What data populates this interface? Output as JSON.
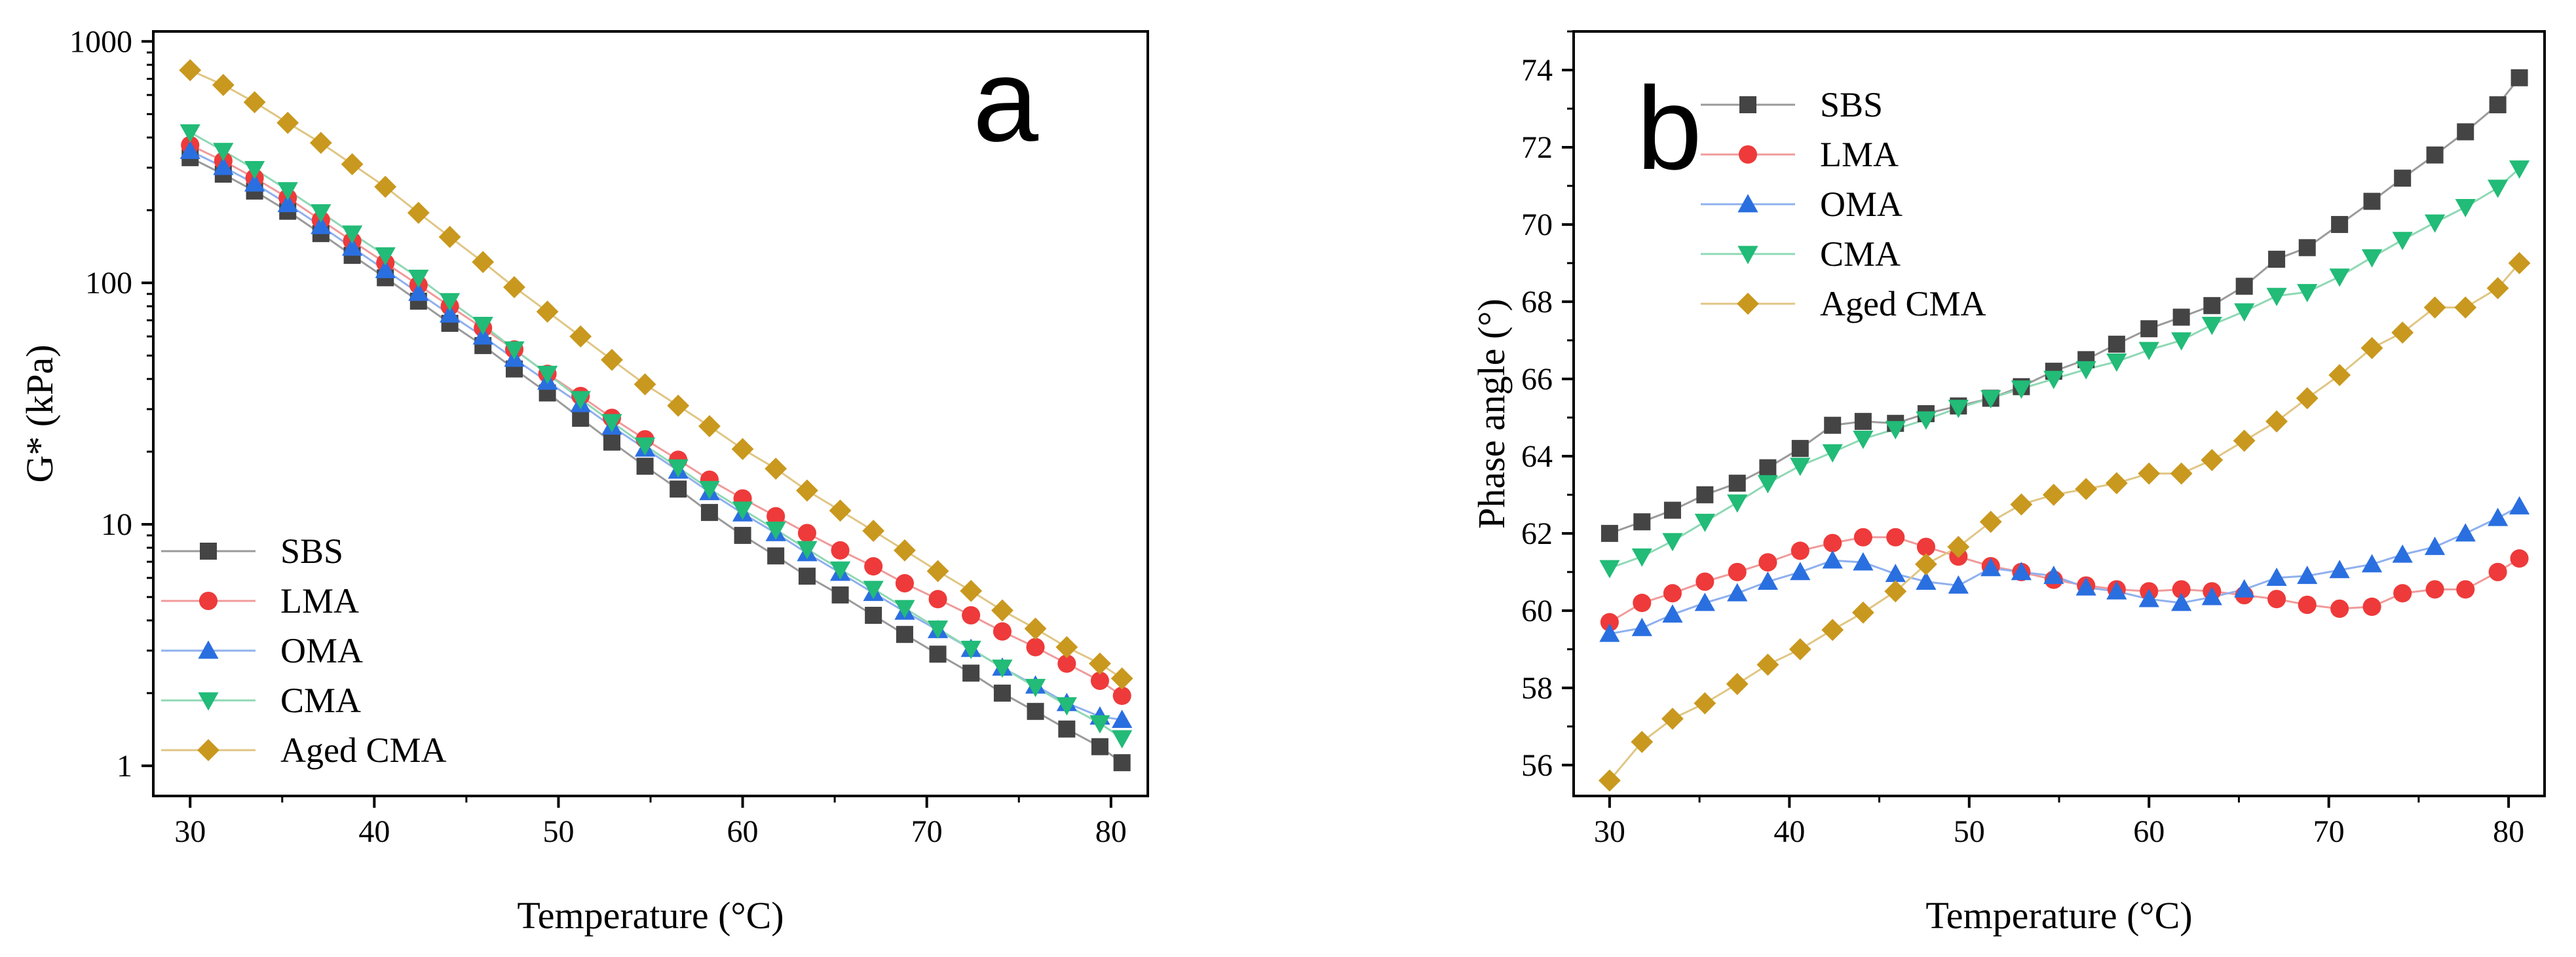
{
  "chart_data": [
    {
      "type": "scatter",
      "panel_label": "a",
      "panel_label_color": "#ee1111",
      "xlabel": "Temperature (°C)",
      "ylabel": "G* (kPa)",
      "yscale": "log",
      "xlim": [
        28,
        82
      ],
      "ylim": [
        0.75,
        1100
      ],
      "xticks": [
        30,
        40,
        50,
        60,
        70,
        80
      ],
      "yticks": [
        1,
        10,
        100,
        1000
      ],
      "legend_position": "bottom-left",
      "x": [
        30,
        31.8,
        33.5,
        35.3,
        37.1,
        38.8,
        40.6,
        42.4,
        44.1,
        45.9,
        47.6,
        49.4,
        51.2,
        52.9,
        54.7,
        56.5,
        58.2,
        60,
        61.8,
        63.5,
        65.3,
        67.1,
        68.8,
        70.6,
        72.4,
        74.1,
        75.9,
        77.6,
        79.4,
        80.6
      ],
      "series": [
        {
          "name": "SBS",
          "marker": "square",
          "color": "#444444",
          "line_color": "#9a9a9a",
          "values": [
            330,
            282,
            240,
            198,
            160,
            130,
            105,
            84,
            68,
            55,
            44,
            35,
            27.5,
            21.9,
            17.4,
            14,
            11.2,
            9.0,
            7.4,
            6.1,
            5.1,
            4.2,
            3.5,
            2.9,
            2.42,
            2.0,
            1.68,
            1.42,
            1.2,
            1.03
          ]
        },
        {
          "name": "LMA",
          "marker": "circle",
          "color": "#ee3a3a",
          "line_color": "#f09a9a",
          "values": [
            372,
            320,
            272,
            225,
            182,
            149,
            121,
            98,
            80,
            65,
            53,
            42,
            34,
            27.6,
            22.5,
            18.5,
            15.3,
            12.8,
            10.8,
            9.2,
            7.8,
            6.7,
            5.7,
            4.9,
            4.2,
            3.6,
            3.1,
            2.65,
            2.25,
            1.95
          ]
        },
        {
          "name": "OMA",
          "marker": "triangle-up",
          "color": "#2a6fe0",
          "line_color": "#8fb0ee",
          "values": [
            352,
            302,
            258,
            212,
            172,
            140,
            113,
            91,
            74,
            60,
            48.5,
            39,
            31.5,
            25.4,
            20.6,
            16.7,
            13.6,
            11.1,
            9.2,
            7.6,
            6.3,
            5.2,
            4.35,
            3.65,
            3.05,
            2.55,
            2.15,
            1.82,
            1.6,
            1.55
          ]
        },
        {
          "name": "CMA",
          "marker": "triangle-down",
          "color": "#22bb77",
          "line_color": "#8fd8b4",
          "values": [
            420,
            352,
            296,
            242,
            196,
            160,
            130,
            105,
            84,
            67,
            53,
            42,
            33,
            26.5,
            21.2,
            17.2,
            14,
            11.5,
            9.5,
            7.9,
            6.5,
            5.4,
            4.5,
            3.7,
            3.05,
            2.55,
            2.12,
            1.78,
            1.5,
            1.3
          ]
        },
        {
          "name": "Aged CMA",
          "marker": "diamond",
          "color": "#c9981e",
          "line_color": "#e0c684",
          "values": [
            760,
            660,
            560,
            460,
            380,
            310,
            250,
            195,
            155,
            122,
            96,
            76,
            60,
            48,
            38,
            31,
            25.5,
            20.5,
            17,
            13.8,
            11.4,
            9.4,
            7.8,
            6.4,
            5.3,
            4.4,
            3.7,
            3.1,
            2.65,
            2.3
          ]
        }
      ]
    },
    {
      "type": "scatter",
      "panel_label": "b",
      "panel_label_color": "#ee1111",
      "xlabel": "Temperature (°C)",
      "ylabel": "Phase angle (°)",
      "yscale": "linear",
      "xlim": [
        28,
        82
      ],
      "ylim": [
        55.2,
        75
      ],
      "xticks": [
        30,
        40,
        50,
        60,
        70,
        80
      ],
      "yticks": [
        56,
        58,
        60,
        62,
        64,
        66,
        68,
        70,
        72,
        74
      ],
      "legend_position": "top-left",
      "x": [
        30,
        31.8,
        33.5,
        35.3,
        37.1,
        38.8,
        40.6,
        42.4,
        44.1,
        45.9,
        47.6,
        49.4,
        51.2,
        52.9,
        54.7,
        56.5,
        58.2,
        60,
        61.8,
        63.5,
        65.3,
        67.1,
        68.8,
        70.6,
        72.4,
        74.1,
        75.9,
        77.6,
        79.4,
        80.6
      ],
      "series": [
        {
          "name": "SBS",
          "marker": "square",
          "color": "#444444",
          "line_color": "#9a9a9a",
          "values": [
            62.0,
            62.3,
            62.6,
            63.0,
            63.3,
            63.7,
            64.2,
            64.8,
            64.9,
            64.85,
            65.1,
            65.3,
            65.5,
            65.8,
            66.2,
            66.5,
            66.9,
            67.3,
            67.6,
            67.9,
            68.4,
            69.1,
            69.4,
            70.0,
            70.6,
            71.2,
            71.8,
            72.4,
            73.1,
            73.8
          ]
        },
        {
          "name": "LMA",
          "marker": "circle",
          "color": "#ee3a3a",
          "line_color": "#f09a9a",
          "values": [
            59.7,
            60.2,
            60.45,
            60.75,
            61.0,
            61.25,
            61.55,
            61.75,
            61.9,
            61.9,
            61.65,
            61.4,
            61.15,
            61.0,
            60.8,
            60.65,
            60.55,
            60.5,
            60.55,
            60.5,
            60.4,
            60.3,
            60.15,
            60.05,
            60.1,
            60.45,
            60.55,
            60.55,
            61.0,
            61.35
          ]
        },
        {
          "name": "OMA",
          "marker": "triangle-up",
          "color": "#2a6fe0",
          "line_color": "#8fb0ee",
          "values": [
            59.4,
            59.55,
            59.9,
            60.2,
            60.45,
            60.75,
            61.0,
            61.3,
            61.25,
            60.95,
            60.75,
            60.65,
            61.1,
            61.0,
            60.9,
            60.6,
            60.5,
            60.3,
            60.2,
            60.35,
            60.55,
            60.85,
            60.9,
            61.05,
            61.2,
            61.45,
            61.65,
            62.0,
            62.4,
            62.7
          ]
        },
        {
          "name": "CMA",
          "marker": "triangle-down",
          "color": "#22bb77",
          "line_color": "#8fd8b4",
          "values": [
            61.1,
            61.4,
            61.8,
            62.3,
            62.8,
            63.3,
            63.75,
            64.1,
            64.45,
            64.7,
            64.95,
            65.25,
            65.5,
            65.75,
            66.0,
            66.25,
            66.45,
            66.75,
            67.0,
            67.4,
            67.75,
            68.15,
            68.25,
            68.65,
            69.15,
            69.6,
            70.05,
            70.45,
            70.95,
            71.45
          ]
        },
        {
          "name": "Aged CMA",
          "marker": "diamond",
          "color": "#c9981e",
          "line_color": "#e0c684",
          "values": [
            55.6,
            56.6,
            57.2,
            57.6,
            58.1,
            58.6,
            59.0,
            59.5,
            59.95,
            60.5,
            61.2,
            61.65,
            62.3,
            62.75,
            63.0,
            63.15,
            63.3,
            63.55,
            63.55,
            63.9,
            64.4,
            64.9,
            65.5,
            66.1,
            66.8,
            67.2,
            67.85,
            67.85,
            68.35,
            69.0
          ]
        }
      ]
    }
  ]
}
